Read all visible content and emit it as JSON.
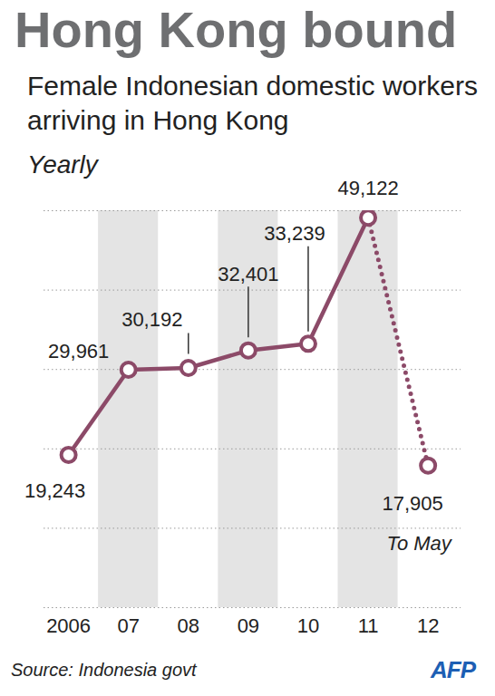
{
  "chart_data": {
    "type": "line",
    "title": "Hong Kong bound",
    "subtitle": "Female Indonesian domestic workers arriving in Hong Kong",
    "unit_label": "Yearly",
    "source": "Source: Indonesia govt",
    "credit": "AFP",
    "categories": [
      "2006",
      "07",
      "08",
      "09",
      "10",
      "11",
      "12"
    ],
    "values": [
      19243,
      29961,
      30192,
      32401,
      33239,
      49122,
      17905
    ],
    "value_labels": [
      "19,243",
      "29,961",
      "30,192",
      "32,401",
      "33,239",
      "49,122",
      "17,905"
    ],
    "color": "#8c4a68",
    "marker": "circle",
    "line_style": "solid",
    "data_labels": true,
    "ylim": [
      0,
      50000
    ],
    "yticks": [
      0,
      10000,
      20000,
      30000,
      40000,
      50000
    ],
    "grid": true,
    "tick_labels": "x",
    "annotations": [
      {
        "text": "To May",
        "category": "12",
        "line_style": "dotted"
      }
    ]
  }
}
